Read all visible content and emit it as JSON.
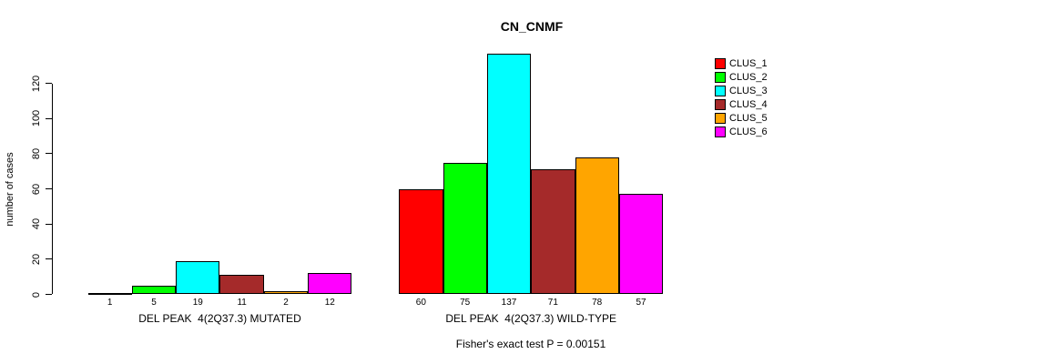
{
  "chart_data": {
    "type": "bar",
    "title": "CN_CNMF",
    "ylabel": "number of cases",
    "xlabel": "",
    "yticks": [
      0,
      20,
      40,
      60,
      80,
      100,
      120
    ],
    "ylim": [
      0,
      137
    ],
    "grid": false,
    "legend_position": "right-outside",
    "categories": [
      "DEL PEAK  4(2Q37.3) MUTATED",
      "DEL PEAK  4(2Q37.3) WILD-TYPE"
    ],
    "series": [
      {
        "name": "CLUS_1",
        "color": "#FF0000",
        "values": [
          1,
          60
        ]
      },
      {
        "name": "CLUS_2",
        "color": "#00FF00",
        "values": [
          5,
          75
        ]
      },
      {
        "name": "CLUS_3",
        "color": "#00FFFF",
        "values": [
          19,
          137
        ]
      },
      {
        "name": "CLUS_4",
        "color": "#A52A2A",
        "values": [
          11,
          71
        ]
      },
      {
        "name": "CLUS_5",
        "color": "#FFA500",
        "values": [
          2,
          78
        ]
      },
      {
        "name": "CLUS_6",
        "color": "#FF00FF",
        "values": [
          12,
          57
        ]
      }
    ],
    "bar_value_labels_shown": true,
    "annotation": "Fisher's exact test P = 0.00151",
    "colors": {
      "axis": "#000000",
      "text": "#000000",
      "background": "#FFFFFF"
    }
  }
}
